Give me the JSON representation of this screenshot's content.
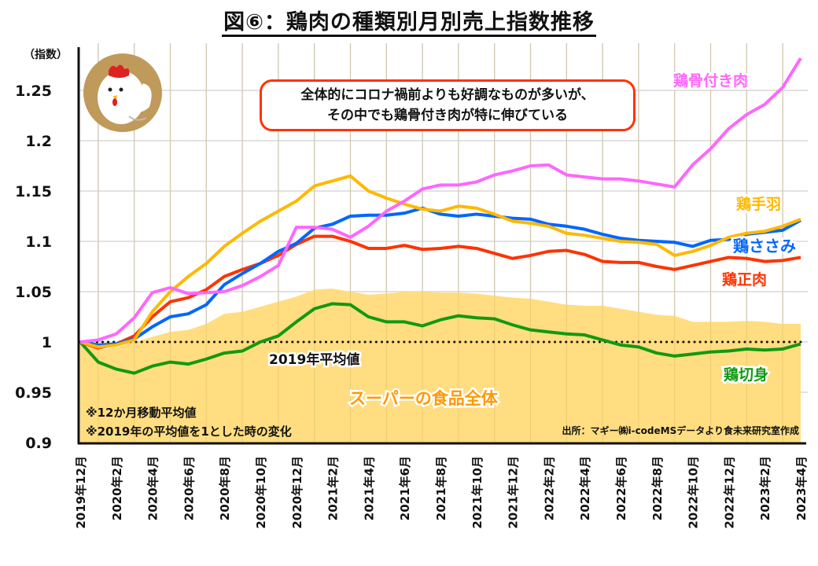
{
  "title": "図⑥：鶏肉の種類別月別売上指数推移",
  "callout": {
    "line1": "全体的にコロナ禍前よりも好調なものが多いが、",
    "line2": "その中でも鶏骨付き肉が特に伸びている"
  },
  "illustration": "chicken-icon",
  "notes": [
    "※12か月移動平均値",
    "※2019年の平均値を1とした時の変化"
  ],
  "source": "出所：マギー㈱i-codeMSデータより食未来研究室作成",
  "chart_data": {
    "type": "line",
    "title": "図⑥：鶏肉の種類別月別売上指数推移",
    "ylabel": "（指数）",
    "xlabel": "",
    "ylim": [
      0.9,
      1.28
    ],
    "yticks": [
      0.9,
      0.95,
      1,
      1.05,
      1.1,
      1.15,
      1.2,
      1.25
    ],
    "ytick_labels": [
      "0.9",
      "0.95",
      "1",
      "1.05",
      "1.1",
      "1.15",
      "1.2",
      "1.25"
    ],
    "grid": true,
    "legend": "inline-labels-right",
    "x": [
      "2019年12月",
      "2020年1月",
      "2020年2月",
      "2020年3月",
      "2020年4月",
      "2020年5月",
      "2020年6月",
      "2020年7月",
      "2020年8月",
      "2020年9月",
      "2020年10月",
      "2020年11月",
      "2020年12月",
      "2021年1月",
      "2021年2月",
      "2021年3月",
      "2021年4月",
      "2021年5月",
      "2021年6月",
      "2021年7月",
      "2021年8月",
      "2021年9月",
      "2021年10月",
      "2021年11月",
      "2021年12月",
      "2022年1月",
      "2022年2月",
      "2022年3月",
      "2022年4月",
      "2022年5月",
      "2022年6月",
      "2022年7月",
      "2022年8月",
      "2022年9月",
      "2022年10月",
      "2022年11月",
      "2022年12月",
      "2023年1月",
      "2023年2月",
      "2023年3月",
      "2023年4月"
    ],
    "xtick_labels": [
      "2019年12月",
      "2020年2月",
      "2020年4月",
      "2020年6月",
      "2020年8月",
      "2020年10月",
      "2020年12月",
      "2021年2月",
      "2021年4月",
      "2021年6月",
      "2021年8月",
      "2021年10月",
      "2021年12月",
      "2022年2月",
      "2022年4月",
      "2022年6月",
      "2022年8月",
      "2022年10月",
      "2022年12月",
      "2023年2月",
      "2023年4月"
    ],
    "area": {
      "name": "スーパーの食品全体",
      "color": "#ffdd80",
      "label_color": "#ff9900",
      "values": [
        1.0,
        0.992,
        0.995,
        1.0,
        1.005,
        1.01,
        1.012,
        1.018,
        1.028,
        1.03,
        1.035,
        1.04,
        1.045,
        1.052,
        1.053,
        1.05,
        1.047,
        1.048,
        1.05,
        1.05,
        1.049,
        1.049,
        1.048,
        1.046,
        1.044,
        1.043,
        1.04,
        1.037,
        1.036,
        1.036,
        1.033,
        1.03,
        1.027,
        1.026,
        1.02,
        1.02,
        1.02,
        1.021,
        1.02,
        1.018,
        1.018
      ]
    },
    "baseline": {
      "value": 1,
      "label": "2019年平均値"
    },
    "series": [
      {
        "name": "鶏骨付き肉",
        "color": "#ff66ff",
        "values": [
          1.0,
          1.002,
          1.008,
          1.024,
          1.049,
          1.054,
          1.048,
          1.049,
          1.05,
          1.056,
          1.065,
          1.076,
          1.114,
          1.114,
          1.112,
          1.104,
          1.115,
          1.13,
          1.14,
          1.152,
          1.156,
          1.156,
          1.159,
          1.166,
          1.17,
          1.175,
          1.176,
          1.166,
          1.164,
          1.162,
          1.162,
          1.16,
          1.157,
          1.154,
          1.176,
          1.192,
          1.212,
          1.226,
          1.236,
          1.253,
          1.282
        ]
      },
      {
        "name": "鶏手羽",
        "color": "#ffb800",
        "values": [
          1.0,
          0.995,
          0.997,
          1.002,
          1.03,
          1.05,
          1.065,
          1.078,
          1.095,
          1.108,
          1.12,
          1.13,
          1.14,
          1.155,
          1.16,
          1.165,
          1.15,
          1.143,
          1.137,
          1.132,
          1.13,
          1.135,
          1.133,
          1.127,
          1.12,
          1.118,
          1.115,
          1.108,
          1.106,
          1.103,
          1.1,
          1.099,
          1.097,
          1.086,
          1.09,
          1.096,
          1.104,
          1.108,
          1.11,
          1.115,
          1.122
        ]
      },
      {
        "name": "鶏ささみ",
        "color": "#0066ff",
        "values": [
          1.0,
          0.997,
          0.998,
          1.003,
          1.015,
          1.025,
          1.028,
          1.037,
          1.057,
          1.068,
          1.078,
          1.09,
          1.098,
          1.113,
          1.117,
          1.125,
          1.126,
          1.126,
          1.128,
          1.133,
          1.127,
          1.125,
          1.127,
          1.125,
          1.123,
          1.122,
          1.117,
          1.115,
          1.112,
          1.107,
          1.103,
          1.101,
          1.1,
          1.099,
          1.095,
          1.101,
          1.102,
          1.107,
          1.109,
          1.111,
          1.121
        ]
      },
      {
        "name": "鶏正肉",
        "color": "#ff3300",
        "values": [
          1.0,
          0.994,
          0.998,
          1.006,
          1.025,
          1.04,
          1.044,
          1.052,
          1.065,
          1.072,
          1.078,
          1.086,
          1.097,
          1.105,
          1.105,
          1.1,
          1.093,
          1.093,
          1.096,
          1.092,
          1.093,
          1.095,
          1.093,
          1.088,
          1.083,
          1.086,
          1.09,
          1.091,
          1.087,
          1.08,
          1.079,
          1.079,
          1.075,
          1.072,
          1.076,
          1.08,
          1.084,
          1.083,
          1.08,
          1.081,
          1.084
        ]
      },
      {
        "name": "鶏切身",
        "color": "#119911",
        "values": [
          1.0,
          0.98,
          0.973,
          0.969,
          0.976,
          0.98,
          0.978,
          0.983,
          0.989,
          0.991,
          1.0,
          1.006,
          1.02,
          1.033,
          1.038,
          1.037,
          1.025,
          1.02,
          1.02,
          1.016,
          1.022,
          1.026,
          1.024,
          1.023,
          1.017,
          1.012,
          1.01,
          1.008,
          1.007,
          1.002,
          0.997,
          0.995,
          0.989,
          0.986,
          0.988,
          0.99,
          0.991,
          0.993,
          0.992,
          0.993,
          0.998
        ]
      }
    ]
  }
}
